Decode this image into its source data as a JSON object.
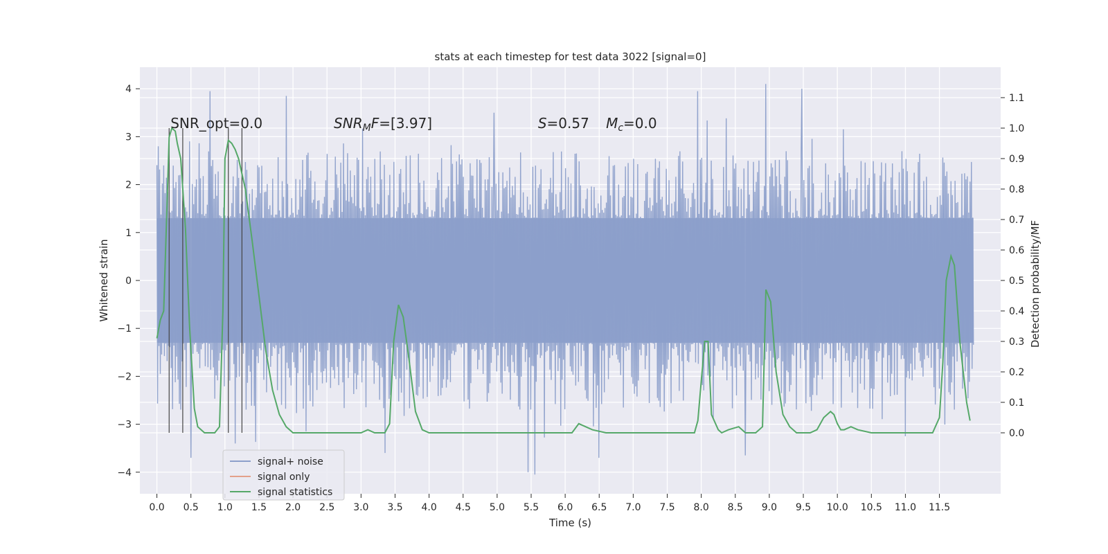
{
  "chart_data": {
    "type": "line",
    "title": "stats at each timestep for test data 3022 [signal=0]",
    "xlabel": "Time (s)",
    "ylabel": "Whitened strain",
    "y2label": "Detection probability/MF",
    "xlim": [
      -0.25,
      12.4
    ],
    "ylim": [
      -4.45,
      4.45
    ],
    "y2lim": [
      -0.2,
      1.2
    ],
    "x_ticks": [
      0.0,
      0.5,
      1.0,
      1.5,
      2.0,
      2.5,
      3.0,
      3.5,
      4.0,
      4.5,
      5.0,
      5.5,
      6.0,
      6.5,
      7.0,
      7.5,
      8.0,
      8.5,
      9.0,
      9.5,
      10.0,
      10.5,
      11.0,
      11.5
    ],
    "x_tick_labels": [
      "0.0",
      "0.5",
      "1.0",
      "1.5",
      "2.0",
      "2.5",
      "3.0",
      "3.5",
      "4.0",
      "4.5",
      "5.0",
      "5.5",
      "6.0",
      "6.5",
      "7.0",
      "7.5",
      "8.0",
      "8.5",
      "9.0",
      "9.5",
      "10.0",
      "10.5",
      "11.0",
      "11.5"
    ],
    "y_ticks": [
      4,
      3,
      2,
      1,
      0,
      -1,
      -2,
      -3,
      -4
    ],
    "y_tick_labels": [
      "4",
      "3",
      "2",
      "1",
      "0",
      "−1",
      "−2",
      "−3",
      "−4"
    ],
    "y2_ticks": [
      1.1,
      1.0,
      0.9,
      0.8,
      0.7,
      0.6,
      0.5,
      0.4,
      0.3,
      0.2,
      0.1,
      0.0
    ],
    "y2_tick_labels": [
      "1.1",
      "1.0",
      "0.9",
      "0.8",
      "0.7",
      "0.6",
      "0.5",
      "0.4",
      "0.3",
      "0.2",
      "0.1",
      "0.0"
    ],
    "grid": true,
    "legend_position": "lower-left",
    "legend": [
      {
        "label": "signal+ noise",
        "color": "#8c9fca"
      },
      {
        "label": "signal only",
        "color": "#e3a08a"
      },
      {
        "label": "signal statistics",
        "color": "#55a868"
      }
    ],
    "annotations": {
      "snr_opt": "SNR_opt=0.0",
      "snr_mf_base": "SNR",
      "snr_mf_sub": "M",
      "snr_mf_base2": "F",
      "snr_mf_value": "=[3.97]",
      "s_var": "S",
      "s_value": "=0.57",
      "mc_var": "M",
      "mc_sub": "c",
      "mc_value": "=0.0"
    },
    "strain_series": {
      "name": "signal+ noise",
      "color": "#8c9fca",
      "x_range": [
        0.0,
        12.0
      ],
      "samples": 1200,
      "core_amplitude": 1.3,
      "peak_values": [
        {
          "x": 0.02,
          "y": 2.8
        },
        {
          "x": 0.78,
          "y": 3.95
        },
        {
          "x": 1.9,
          "y": 3.85
        },
        {
          "x": 4.95,
          "y": 3.5
        },
        {
          "x": 7.95,
          "y": 3.95
        },
        {
          "x": 8.95,
          "y": 4.1
        },
        {
          "x": 9.48,
          "y": 4.0
        },
        {
          "x": 5.45,
          "y": -4.0
        },
        {
          "x": 5.55,
          "y": -4.05
        },
        {
          "x": 0.5,
          "y": -3.7
        },
        {
          "x": 8.65,
          "y": -3.65
        },
        {
          "x": 6.5,
          "y": -3.7
        },
        {
          "x": 3.35,
          "y": -3.6
        },
        {
          "x": 11.0,
          "y": -3.25
        },
        {
          "x": 1.15,
          "y": -3.4
        }
      ]
    },
    "statistics_series": {
      "name": "signal statistics",
      "color": "#55a868",
      "x": [
        0.0,
        0.05,
        0.1,
        0.18,
        0.22,
        0.27,
        0.3,
        0.35,
        0.42,
        0.48,
        0.55,
        0.6,
        0.65,
        0.7,
        0.78,
        0.85,
        0.92,
        0.97,
        1.0,
        1.05,
        1.1,
        1.15,
        1.2,
        1.3,
        1.4,
        1.5,
        1.6,
        1.7,
        1.8,
        1.9,
        2.0,
        2.2,
        2.5,
        3.0,
        3.1,
        3.2,
        3.3,
        3.35,
        3.42,
        3.48,
        3.55,
        3.62,
        3.7,
        3.8,
        3.9,
        4.0,
        4.5,
        5.0,
        5.5,
        6.0,
        6.1,
        6.2,
        6.4,
        6.6,
        6.8,
        7.0,
        7.5,
        7.8,
        7.9,
        7.95,
        8.05,
        8.1,
        8.15,
        8.25,
        8.3,
        8.4,
        8.55,
        8.65,
        8.8,
        8.9,
        8.95,
        9.02,
        9.1,
        9.2,
        9.3,
        9.4,
        9.5,
        9.6,
        9.7,
        9.8,
        9.9,
        9.95,
        10.0,
        10.05,
        10.1,
        10.2,
        10.3,
        10.5,
        10.7,
        10.9,
        11.2,
        11.4,
        11.5,
        11.55,
        11.6,
        11.67,
        11.72,
        11.8,
        11.9,
        11.95
      ],
      "y": [
        0.31,
        0.37,
        0.4,
        0.97,
        1.0,
        0.99,
        0.95,
        0.9,
        0.67,
        0.35,
        0.08,
        0.02,
        0.01,
        0.0,
        0.0,
        0.0,
        0.02,
        0.4,
        0.9,
        0.96,
        0.95,
        0.93,
        0.9,
        0.8,
        0.63,
        0.45,
        0.27,
        0.14,
        0.06,
        0.02,
        0.0,
        0.0,
        0.0,
        0.0,
        0.01,
        0.0,
        0.0,
        0.0,
        0.03,
        0.3,
        0.42,
        0.38,
        0.25,
        0.07,
        0.01,
        0.0,
        0.0,
        0.0,
        0.0,
        0.0,
        0.0,
        0.03,
        0.01,
        0.0,
        0.0,
        0.0,
        0.0,
        0.0,
        0.0,
        0.04,
        0.3,
        0.3,
        0.06,
        0.01,
        0.0,
        0.01,
        0.02,
        0.0,
        0.0,
        0.02,
        0.47,
        0.43,
        0.2,
        0.06,
        0.02,
        0.0,
        0.0,
        0.0,
        0.01,
        0.05,
        0.07,
        0.06,
        0.03,
        0.01,
        0.01,
        0.02,
        0.01,
        0.0,
        0.0,
        0.0,
        0.0,
        0.0,
        0.05,
        0.23,
        0.5,
        0.58,
        0.55,
        0.3,
        0.1,
        0.04
      ]
    },
    "marker_lines": [
      0.18,
      0.38,
      1.05,
      1.25
    ]
  }
}
